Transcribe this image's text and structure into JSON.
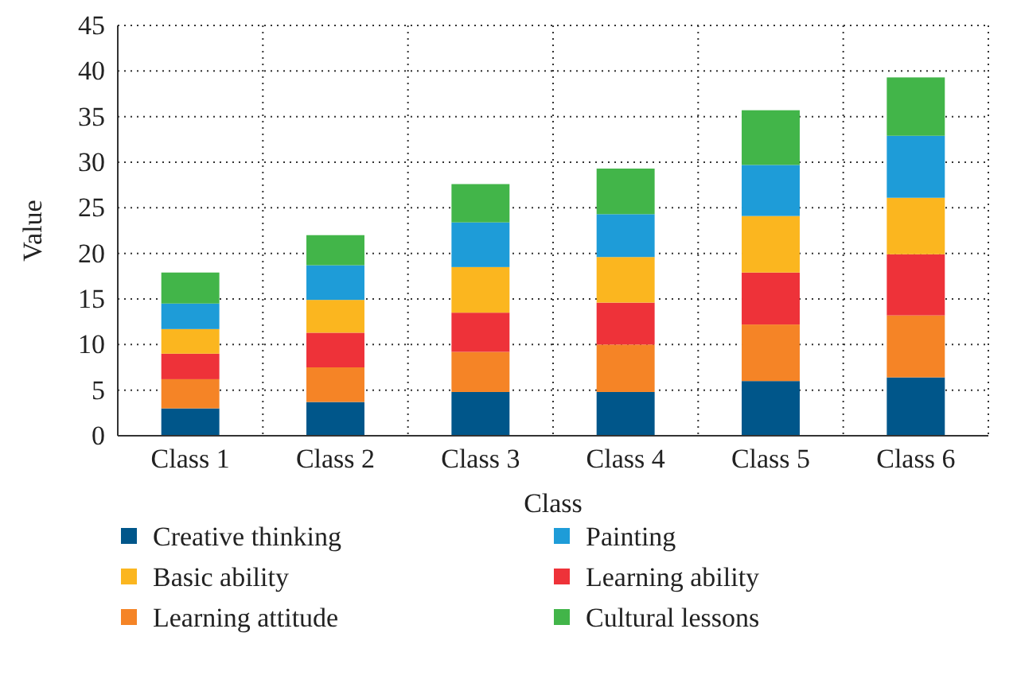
{
  "chart_data": {
    "type": "bar",
    "stacked": true,
    "xlabel": "Class",
    "ylabel": "Value",
    "categories": [
      "Class 1",
      "Class 2",
      "Class 3",
      "Class 4",
      "Class 5",
      "Class 6"
    ],
    "ylim": [
      0,
      45
    ],
    "yticks": [
      0,
      5,
      10,
      15,
      20,
      25,
      30,
      35,
      40,
      45
    ],
    "grid": true,
    "legend": "bottom",
    "series": [
      {
        "name": "Creative thinking",
        "color": "#00568a",
        "values": [
          3.0,
          3.7,
          4.8,
          4.8,
          6.0,
          6.4
        ]
      },
      {
        "name": "Learning attitude",
        "color": "#f58426",
        "values": [
          3.2,
          3.8,
          4.4,
          5.2,
          6.2,
          6.8
        ]
      },
      {
        "name": "Learning ability",
        "color": "#ee3239",
        "values": [
          2.8,
          3.8,
          4.3,
          4.6,
          5.7,
          6.7
        ]
      },
      {
        "name": "Basic ability",
        "color": "#fbb61f",
        "values": [
          2.7,
          3.6,
          5.0,
          5.0,
          6.2,
          6.2
        ]
      },
      {
        "name": "Painting",
        "color": "#1e9cd8",
        "values": [
          2.8,
          3.8,
          4.9,
          4.7,
          5.6,
          6.8
        ]
      },
      {
        "name": "Cultural lessons",
        "color": "#42b549",
        "values": [
          3.4,
          3.3,
          4.2,
          5.0,
          6.0,
          6.4
        ]
      }
    ]
  }
}
